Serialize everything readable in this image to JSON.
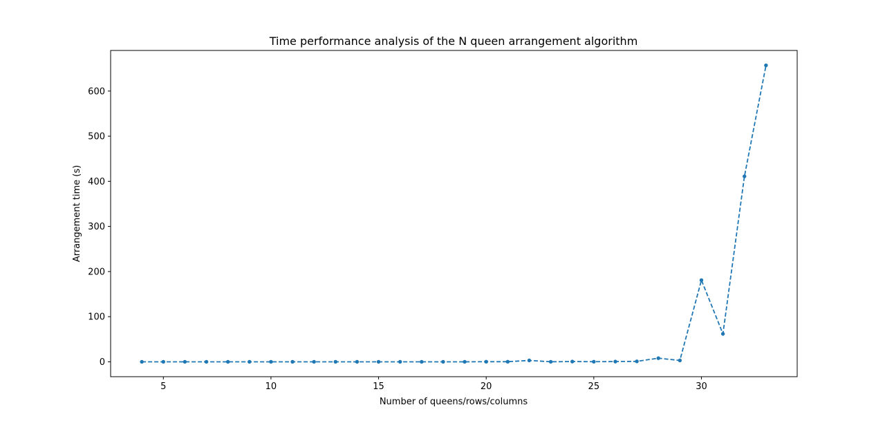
{
  "chart_data": {
    "type": "line",
    "title": "Time performance analysis of the N queen arrangement algorithm",
    "xlabel": "Number of queens/rows/columns",
    "ylabel": "Arrangement time (s)",
    "xlim": [
      2.55,
      34.45
    ],
    "ylim": [
      -33,
      690
    ],
    "xticks": [
      5,
      10,
      15,
      20,
      25,
      30
    ],
    "yticks": [
      0,
      100,
      200,
      300,
      400,
      500,
      600
    ],
    "grid": false,
    "series": [
      {
        "color": "#1f77b4",
        "line_style": "dashed",
        "marker": "circle",
        "x": [
          4,
          5,
          6,
          7,
          8,
          9,
          10,
          11,
          12,
          13,
          14,
          15,
          16,
          17,
          18,
          19,
          20,
          21,
          22,
          23,
          24,
          25,
          26,
          27,
          28,
          29,
          30,
          31,
          32,
          33
        ],
        "y": [
          0,
          0,
          0,
          0,
          0,
          0,
          0,
          0,
          0,
          0,
          0,
          0,
          0,
          0,
          0,
          0,
          0.2,
          0.2,
          3,
          0.1,
          0.5,
          0.2,
          0.5,
          1,
          8,
          3,
          181,
          62,
          411,
          657
        ]
      }
    ]
  }
}
